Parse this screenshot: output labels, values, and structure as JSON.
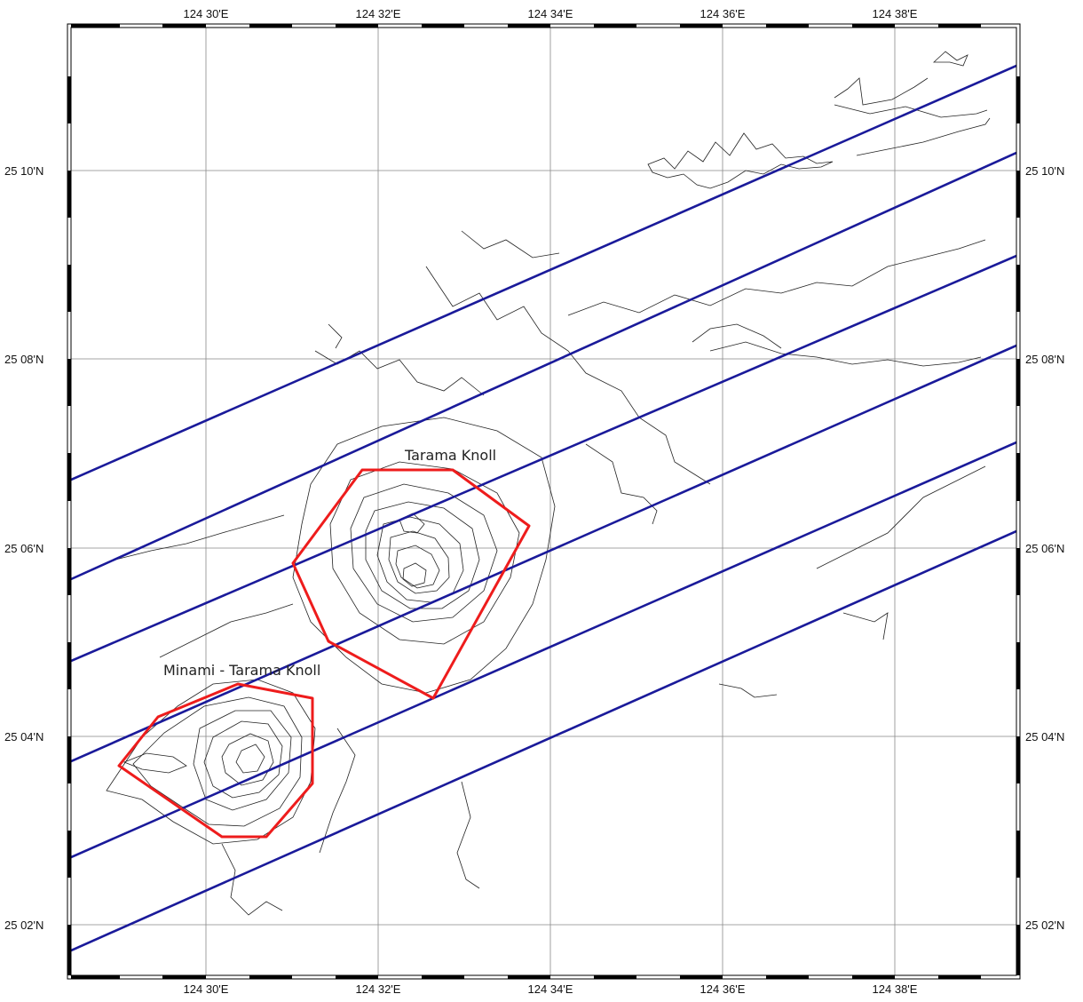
{
  "map": {
    "lon_labels_top": [
      "124 30'E",
      "124 32'E",
      "124 34'E",
      "124 36'E",
      "124 38'E"
    ],
    "lon_labels_bottom": [
      "124 30'E",
      "124 32'E",
      "124 34'E",
      "124 36'E",
      "124 38'E"
    ],
    "lat_labels_left": [
      "25 10'N",
      "25 08'N",
      "25 06'N",
      "25 04'N",
      "25 02'N"
    ],
    "lat_labels_right": [
      "25 10'N",
      "25 08'N",
      "25 06'N",
      "25 04'N",
      "25 02'N"
    ],
    "features": [
      {
        "id": "tarama-knoll",
        "name": "Tarama Knoll"
      },
      {
        "id": "minami-tarama-knoll",
        "name": "Minami - Tarama Knoll"
      }
    ],
    "colors": {
      "survey_lines": "#1a1a9a",
      "survey_areas": "#ee1c1c",
      "contours": "#222222",
      "grid": "#888888"
    },
    "survey_line_count": 6
  }
}
